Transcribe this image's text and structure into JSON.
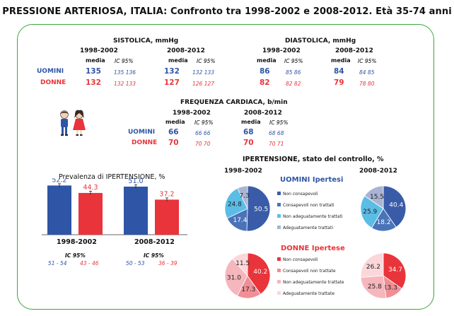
{
  "title": "PRESSIONE ARTERIOSA, ITALIA: Confronto tra 1998-2002 e 2008-2012. Età 35-74 anni",
  "labels": {
    "uomini": "UOMINI",
    "donne": "DONNE",
    "media": "media",
    "ic": "IC 95%",
    "p1": "1998-2002",
    "p2": "2008-2012"
  },
  "colors": {
    "men": "#2e55a6",
    "women": "#e8343a",
    "frame": "#3aa63a"
  },
  "sistolica": {
    "title": "SISTOLICA, mmHg",
    "uomini": {
      "p1_mean": "135",
      "p1_ci": "135 136",
      "p2_mean": "132",
      "p2_ci": "132 133"
    },
    "donne": {
      "p1_mean": "132",
      "p1_ci": "132 133",
      "p2_mean": "127",
      "p2_ci": "126 127"
    }
  },
  "diastolica": {
    "title": "DIASTOLICA, mmHg",
    "uomini": {
      "p1_mean": "86",
      "p1_ci": "85 86",
      "p2_mean": "84",
      "p2_ci": "84 85"
    },
    "donne": {
      "p1_mean": "82",
      "p1_ci": "82 82",
      "p2_mean": "79",
      "p2_ci": "78 80"
    }
  },
  "frequenza": {
    "title": "FREQUENZA CARDIACA, b/min",
    "uomini": {
      "p1_mean": "66",
      "p1_ci": "66 66",
      "p2_mean": "68",
      "p2_ci": "68 68"
    },
    "donne": {
      "p1_mean": "70",
      "p1_ci": "70 70",
      "p2_mean": "70",
      "p2_ci": "70 71"
    }
  },
  "prevalenza": {
    "title": "Prevalenza di IPERTENSIONE, %",
    "ic_label": "IC 95%",
    "p1_ci_men": "51 - 54",
    "p1_ci_women": "43 - 46",
    "p2_ci_men": "50 - 53",
    "p2_ci_women": "36 - 39"
  },
  "controllo": {
    "title": "IPERTENSIONE, stato del controllo, %",
    "men_title": "UOMINI Ipertesi",
    "women_title": "DONNE Ipertese",
    "men_legend": [
      "Non consapevoli",
      "Consapevoli non trattati",
      "Non adeguatamente trattati",
      "Adeguatamente trattati"
    ],
    "women_legend": [
      "Non consapevoli",
      "Consapevoli non trattate",
      "Non adeguatamente trattate",
      "Adeguatamente trattate"
    ],
    "men_colors": [
      "#3a5ca8",
      "#4a73b8",
      "#5bbde6",
      "#a9b3d3"
    ],
    "women_colors": [
      "#e8343a",
      "#f08e96",
      "#f5b6bc",
      "#fbd7da"
    ]
  },
  "chart_data": [
    {
      "type": "bar",
      "title": "Prevalenza di IPERTENSIONE, %",
      "categories": [
        "1998-2002",
        "2008-2012"
      ],
      "series": [
        {
          "name": "UOMINI",
          "values": [
            52.2,
            51.0
          ]
        },
        {
          "name": "DONNE",
          "values": [
            44.3,
            37.2
          ]
        }
      ],
      "value_labels": [
        [
          "52.2",
          "51.0"
        ],
        [
          "44.3",
          "37.2"
        ]
      ],
      "ylim": [
        0,
        60
      ]
    },
    {
      "type": "pie",
      "title": "UOMINI Ipertesi 1998-2002",
      "values": [
        50.5,
        17.4,
        24.8,
        7.3
      ],
      "labels": [
        "50.5",
        "17.4",
        "24.8",
        "7.3"
      ]
    },
    {
      "type": "pie",
      "title": "UOMINI Ipertesi 2008-2012",
      "values": [
        40.4,
        18.2,
        25.9,
        15.5
      ],
      "labels": [
        "40.4",
        "18.2",
        "25.9",
        "15.5"
      ]
    },
    {
      "type": "pie",
      "title": "DONNE Ipertese 1998-2002",
      "values": [
        40.2,
        17.3,
        31.0,
        11.5
      ],
      "labels": [
        "40.2",
        "17.3",
        "31.0",
        "11.5"
      ]
    },
    {
      "type": "pie",
      "title": "DONNE Ipertese 2008-2012",
      "values": [
        34.7,
        13.3,
        25.8,
        26.2
      ],
      "labels": [
        "34.7",
        "13.3",
        "25.8",
        "26.2"
      ]
    }
  ]
}
